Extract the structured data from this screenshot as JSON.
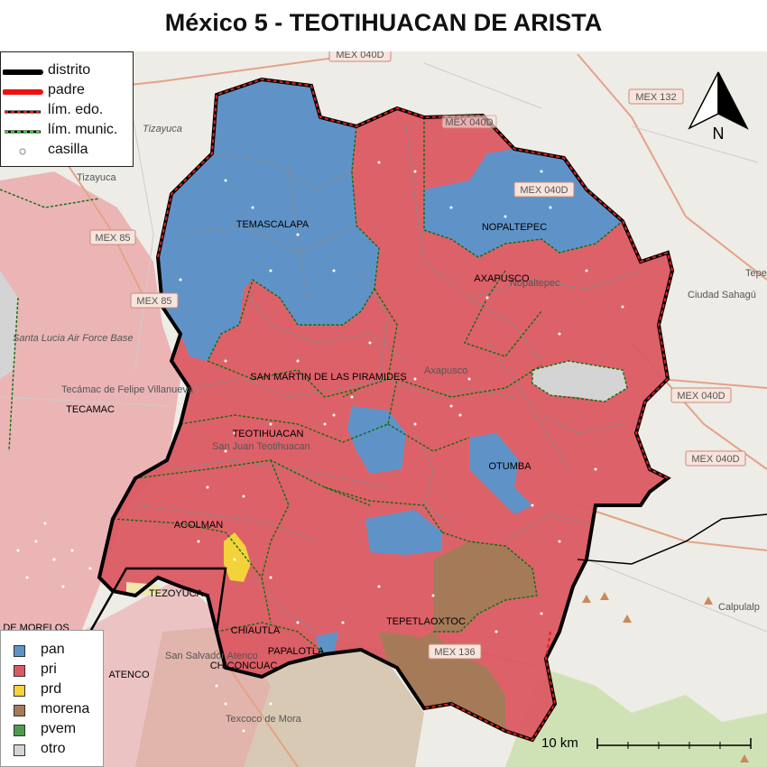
{
  "title": "México 5 - TEOTIHUACAN DE ARISTA",
  "legend_lines": [
    {
      "label": "distrito"
    },
    {
      "label": "padre"
    },
    {
      "label": "lím. edo."
    },
    {
      "label": "lím. munic."
    },
    {
      "label": "casilla"
    }
  ],
  "legend_parties": [
    {
      "label": "pan",
      "color": "#5f93c8"
    },
    {
      "label": "pri",
      "color": "#db5a62"
    },
    {
      "label": "prd",
      "color": "#f4d23c"
    },
    {
      "label": "morena",
      "color": "#a57a58"
    },
    {
      "label": "pvem",
      "color": "#4f9a4f"
    },
    {
      "label": "otro",
      "color": "#d4d4d4"
    }
  ],
  "municipalities": {
    "temascalapa": "TEMASCALAPA",
    "nopaltepec": "NOPALTEPEC",
    "axapusco": "AXAPUSCO",
    "san_martin": "SAN MARTIN DE LAS PIRAMIDES",
    "teotihuacan": "TEOTIHUACAN",
    "otumba": "OTUMBA",
    "acolman": "ACOLMAN",
    "tezoyuca": "TEZOYUCA",
    "chiautla": "CHIAUTLA",
    "papalotla": "PAPALOTLA",
    "chiconcuac": "CHICONCUAC",
    "tepetlaoxtoc": "TEPETLAOXTOC",
    "tecamac": "TECAMAC",
    "atenco": "ATENCO",
    "de_morelos": "DE MORELOS"
  },
  "background_labels": {
    "tizayuca_airport": "Tizayuca",
    "tizayuca": "Tizayuca",
    "santa_lucia": "Santa Lucia Air Force Base",
    "tecamac_bg": "Tecámac de Felipe Villanueva",
    "ciudad_sahagun": "Ciudad Sahagú",
    "tepe": "Tepe",
    "calpulalpan": "Calpulalp",
    "teotihuacan_bg": "San Juan Teotihuacan",
    "san_salvador": "San Salvador Atenco",
    "texcoco": "Texcoco de Mora",
    "teotepec": "Nopaltepec",
    "axapusco_bg": "Axapusco"
  },
  "roads": {
    "mex040d_top": "MEX 040D",
    "mex132": "MEX 132",
    "mex040d_mid": "MEX 040D",
    "mex040d_right1": "MEX 040D",
    "mex040d_right2": "MEX 040D",
    "mex85": "MEX 85",
    "mex85d": "MEX 85",
    "mex136": "MEX 136",
    "mex040d_small": "MEX 040D"
  },
  "north_label": "N",
  "scale_label": "10 km"
}
